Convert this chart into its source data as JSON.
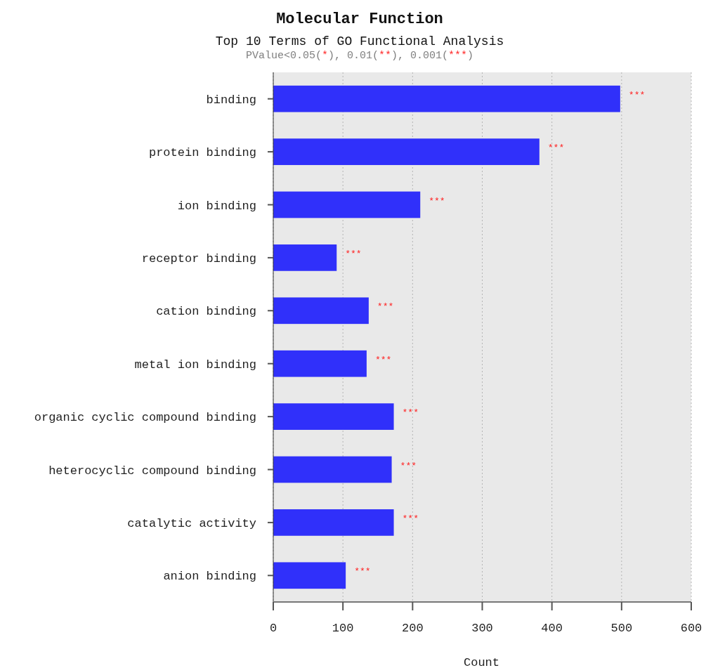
{
  "chart_data": {
    "type": "bar",
    "orientation": "horizontal",
    "title": "Molecular Function",
    "subtitle": "Top 10 Terms of GO Functional Analysis",
    "annotations": [
      "PValue<0.05(*), 0.01(**), 0.001(***)"
    ],
    "xlabel": "Count",
    "categories": [
      "binding",
      "protein binding",
      "ion binding",
      "receptor binding",
      "cation binding",
      "metal ion binding",
      "organic cyclic compound binding",
      "heterocyclic compound binding",
      "catalytic activity",
      "anion binding"
    ],
    "values": [
      498,
      382,
      211,
      91,
      137,
      134,
      173,
      170,
      173,
      104
    ],
    "value_labels": [
      "***",
      "***",
      "***",
      "***",
      "***",
      "***",
      "***",
      "***",
      "***",
      "***"
    ],
    "color": "#3030fa",
    "xlim": [
      0,
      600
    ],
    "xticks": [
      0,
      100,
      200,
      300,
      400,
      500,
      600
    ],
    "grid": "x"
  }
}
